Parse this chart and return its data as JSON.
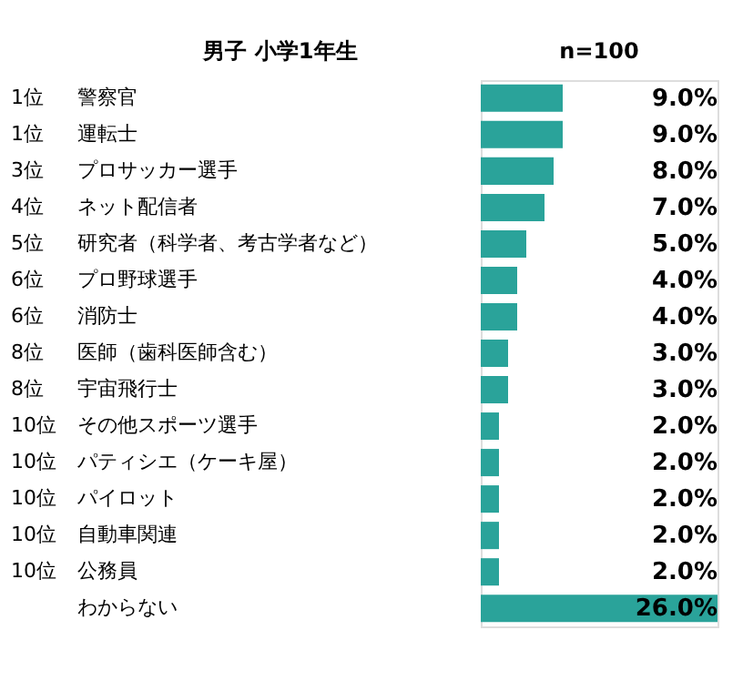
{
  "chart_data": {
    "type": "bar",
    "orientation": "horizontal",
    "title": "男子  小学1年生",
    "subtitle": "n=100",
    "categories": [
      "警察官",
      "運転士",
      "プロサッカー選手",
      "ネット配信者",
      "研究者（科学者、考古学者など）",
      "プロ野球選手",
      "消防士",
      "医師（歯科医師含む）",
      "宇宙飛行士",
      "その他スポーツ選手",
      "パティシエ（ケーキ屋）",
      "パイロット",
      "自動車関連",
      "公務員",
      "わからない"
    ],
    "values": [
      9.0,
      9.0,
      8.0,
      7.0,
      5.0,
      4.0,
      4.0,
      3.0,
      3.0,
      2.0,
      2.0,
      2.0,
      2.0,
      2.0,
      26.0
    ],
    "value_labels": [
      "9.0%",
      "9.0%",
      "8.0%",
      "7.0%",
      "5.0%",
      "4.0%",
      "4.0%",
      "3.0%",
      "3.0%",
      "2.0%",
      "2.0%",
      "2.0%",
      "2.0%",
      "2.0%",
      "26.0%"
    ],
    "color": "#2aa39a",
    "annotations": [
      "1位",
      "1位",
      "3位",
      "4位",
      "5位",
      "6位",
      "6位",
      "8位",
      "8位",
      "10位",
      "10位",
      "10位",
      "10位",
      "10位"
    ]
  }
}
